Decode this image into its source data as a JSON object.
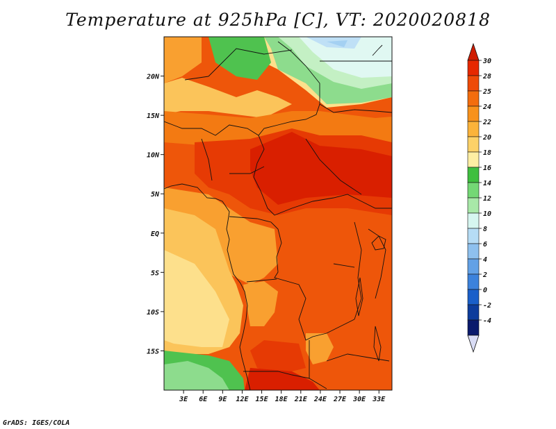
{
  "title": "Temperature at 925hPa [C], VT: 2020020818",
  "footer": "GrADS: IGES/COLA",
  "map": {
    "lon_range": [
      0,
      35
    ],
    "lat_range": [
      -20,
      25
    ],
    "lon_ticks": [
      {
        "value": 3,
        "label": "3E"
      },
      {
        "value": 6,
        "label": "6E"
      },
      {
        "value": 9,
        "label": "9E"
      },
      {
        "value": 12,
        "label": "12E"
      },
      {
        "value": 15,
        "label": "15E"
      },
      {
        "value": 18,
        "label": "18E"
      },
      {
        "value": 21,
        "label": "21E"
      },
      {
        "value": 24,
        "label": "24E"
      },
      {
        "value": 27,
        "label": "27E"
      },
      {
        "value": 30,
        "label": "30E"
      },
      {
        "value": 33,
        "label": "33E"
      }
    ],
    "lat_ticks": [
      {
        "value": 20,
        "label": "20N"
      },
      {
        "value": 15,
        "label": "15N"
      },
      {
        "value": 10,
        "label": "10N"
      },
      {
        "value": 5,
        "label": "5N"
      },
      {
        "value": 0,
        "label": "EQ"
      },
      {
        "value": -5,
        "label": "5S"
      },
      {
        "value": -10,
        "label": "10S"
      },
      {
        "value": -15,
        "label": "15S"
      }
    ]
  },
  "colorbar": {
    "labels": [
      "30",
      "28",
      "25",
      "24",
      "22",
      "20",
      "18",
      "16",
      "14",
      "12",
      "10",
      "8",
      "6",
      "4",
      "2",
      "0",
      "-2",
      "-4"
    ],
    "colors": [
      "#e62800",
      "#ee4a08",
      "#f36d0e",
      "#f8921c",
      "#fbb33a",
      "#fcd168",
      "#fdeea3",
      "#3fbf3f",
      "#74d875",
      "#a8e8a8",
      "#d6f6f0",
      "#b6dcf5",
      "#8ec0ee",
      "#63a1e6",
      "#3c82dc",
      "#1a5fc9",
      "#0d3c9c",
      "#0a1a6c"
    ],
    "top_arrow_color": "#cf1c00",
    "bottom_arrow_color": "#d9dcf5"
  },
  "field_colors": {
    "hot": "#d91f00",
    "red": "#e63a04",
    "orange_red": "#ee560a",
    "orange": "#f37a12",
    "light_orange": "#f9a030",
    "tan": "#fbc45a",
    "pale": "#fde08c",
    "cream": "#fdf0b6",
    "green": "#4fc24f",
    "light_green": "#8ddc8d",
    "pale_green": "#c4f0c4",
    "mint": "#e0f8f2",
    "light_blue": "#bfe0f6",
    "sky": "#a4d0f2"
  }
}
